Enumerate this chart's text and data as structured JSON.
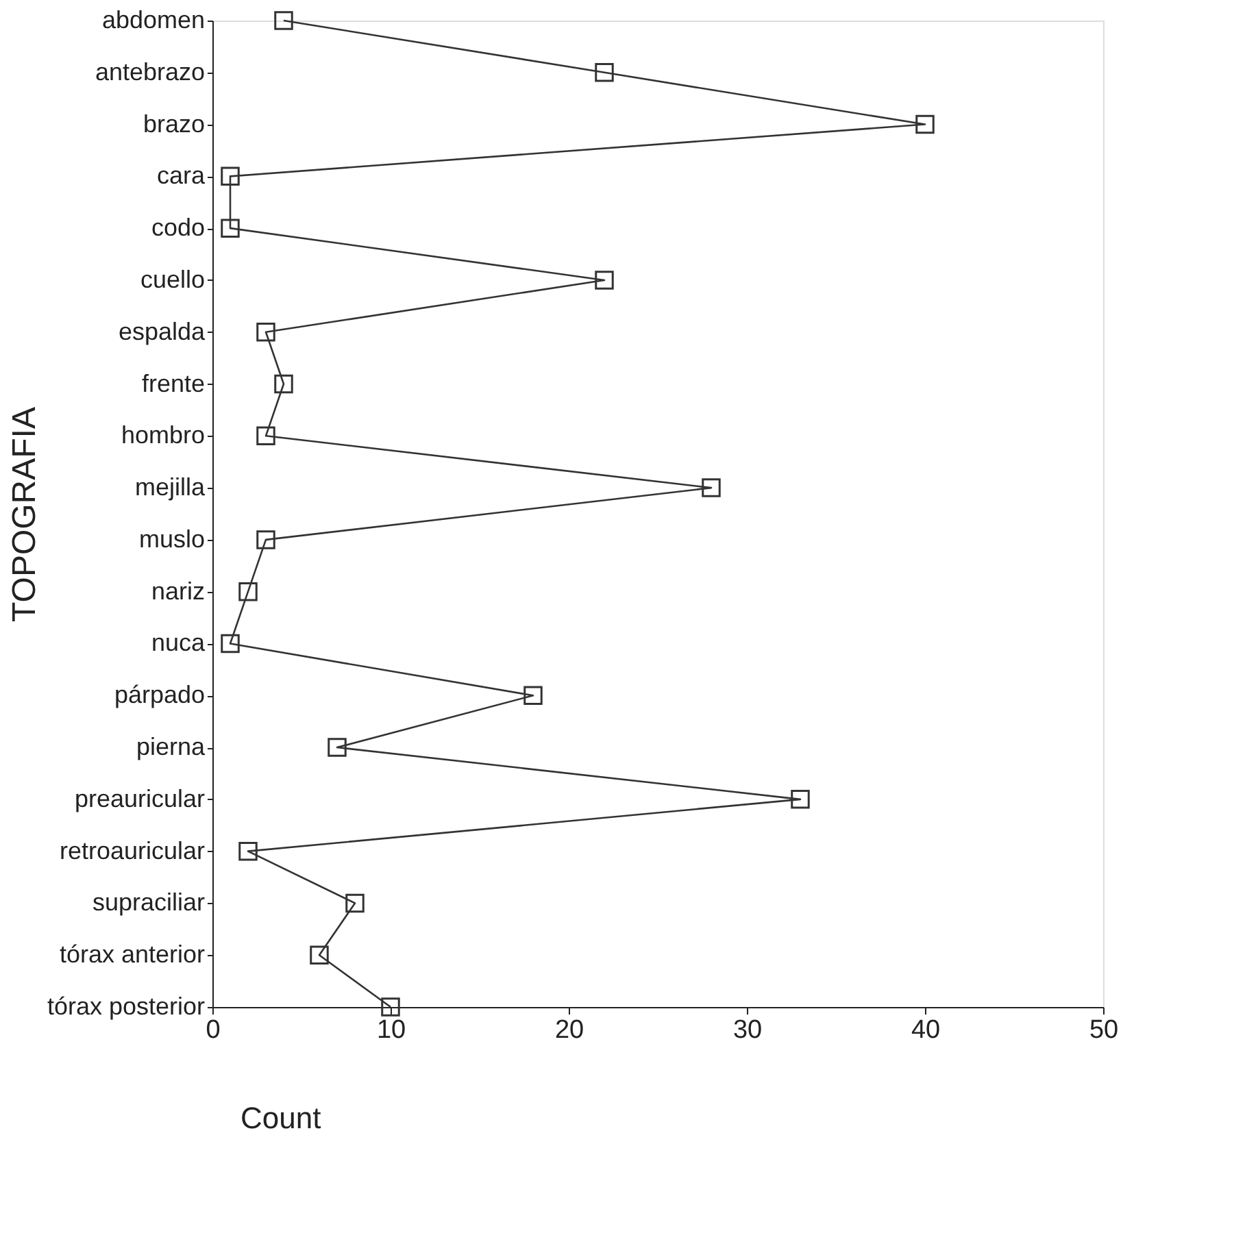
{
  "chart_data": {
    "type": "line",
    "orientation": "horizontal",
    "categories": [
      "abdomen",
      "antebrazo",
      "brazo",
      "cara",
      "codo",
      "cuello",
      "espalda",
      "frente",
      "hombro",
      "mejilla",
      "muslo",
      "nariz",
      "nuca",
      "párpado",
      "pierna",
      "preauricular",
      "retroauricular",
      "supraciliar",
      "tórax anterior",
      "tórax posterior"
    ],
    "values": [
      4,
      22,
      40,
      1,
      1,
      22,
      3,
      4,
      3,
      28,
      3,
      2,
      1,
      18,
      7,
      33,
      2,
      8,
      6,
      10
    ],
    "color": "#333333",
    "xlim": [
      0,
      50
    ],
    "xticks": [
      0,
      10,
      20,
      30,
      40,
      50
    ],
    "xlabel": "Count",
    "ylabel": "TOPOGRAFIA",
    "marker": "square",
    "line_style": "solid",
    "grid": false
  }
}
